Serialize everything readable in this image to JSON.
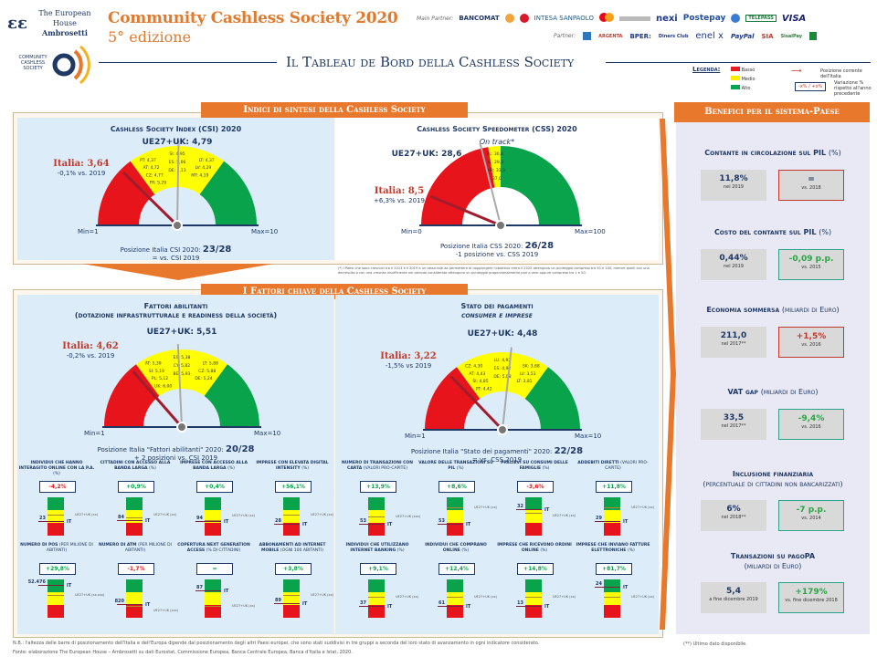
{
  "header": {
    "org_logo_line1": "The European House",
    "org_logo_line2": "Ambrosetti",
    "title": "Community Cashless Society 2020",
    "edition": "5° edizione",
    "ccs_logo_text": "COMMUNITY CASHLESS SOCIETY",
    "main_partner_label": "Main Partner:",
    "main_partners": [
      "BANCOMAT",
      "INTESA SANPAOLO",
      "nexi",
      "Postepay",
      "TELEPASS",
      "VISA"
    ],
    "partner_label": "Partner:",
    "partners": [
      "ARGENTA",
      "BPER:",
      "Diners Club",
      "enel x",
      "PayPal",
      "SIA",
      "SisalPay"
    ],
    "tableau_title": "Il Tableau de Bord della Cashless Society"
  },
  "legend": {
    "title": "Legenda:",
    "levels": [
      {
        "label": "Basso",
        "color": "#e31e24"
      },
      {
        "label": "Medio",
        "color": "#ffed00"
      },
      {
        "label": "Alto",
        "color": "#00a651"
      }
    ],
    "arrow_label": "Posizione corrente dell'Italia",
    "change_sample": "-x% / +x%",
    "change_label": "Variazione % rispetto all'anno precedente"
  },
  "colors": {
    "red": "#e8141b",
    "yellow": "#ffff00",
    "green": "#08a34a",
    "orange": "#e8782c",
    "navy": "#1f3864",
    "italy": "#c0392b"
  },
  "sections": {
    "indici": "Indici di sintesi della Cashless Society",
    "fattori": "I Fattori chiave della Cashless Society",
    "benefici": "Benefici per il sistema-Paese"
  },
  "gauges": [
    {
      "title": "Cashless Society Index (CSI) 2020",
      "eu_label": "UE27+UK: 4,79",
      "eu_value": 4.79,
      "italy_label": "Italia: 3,64",
      "italy_value": 3.64,
      "italy_change": "-0,1% vs. 2019",
      "min": 1,
      "max": 10,
      "min_label": "Min=1",
      "max_label": "Max=10",
      "red_until": 4.2,
      "yellow_until": 5.35,
      "position_text": "Posizione Italia CSI 2020: ",
      "position_rank": "23/28",
      "position_change": "= vs. CSI 2019",
      "country_labels": [
        "PT: 4,37",
        "SI: 4,95",
        "LT: 4,37",
        "AT: 4,72",
        "ES: 5,06",
        "LV: 4,29",
        "CZ: 4,77",
        "DE: 5,13",
        "MT: 4,19",
        "FR: 5,29"
      ]
    },
    {
      "title": "Cashless Society Speedometer (CSS) 2020",
      "subtitle": "On track*",
      "eu_label": "UE27+UK: 28,6",
      "eu_value": 28.6,
      "italy_label": "Italia: 8,5",
      "italy_value": 8.5,
      "italy_change": "+6,3% vs. 2019",
      "min": 0,
      "max": 100,
      "min_label": "Min=0",
      "max_label": "Max=100",
      "red_until": 30.5,
      "yellow_until": 37.5,
      "position_text": "Posizione Italia CSS 2020: ",
      "position_rank": "26/28",
      "position_change": "-1 posizione vs. CSS 2019",
      "country_labels": [
        "PL: 30,8",
        "IE: 29,3",
        "HR: 33,3",
        "37,0"
      ]
    },
    {
      "title": "Fattori abilitanti",
      "title2": "(dotazione infrastrutturale e readiness della società)",
      "eu_label": "UE27+UK: 5,51",
      "eu_value": 5.51,
      "italy_label": "Italia: 4,62",
      "italy_value": 4.62,
      "italy_change": "-0,2% vs. 2019",
      "min": 1,
      "max": 10,
      "min_label": "Min=1",
      "max_label": "Max=10",
      "red_until": 5.0,
      "yellow_until": 6.1,
      "position_text": "Posizione Italia \"Fattori abilitanti\" 2020: ",
      "position_rank": "20/28",
      "position_change": "+ 2 posizioni vs. CSI 2019",
      "country_labels": [
        "AT: 5,39",
        "ES: 5,38",
        "LT: 5,88",
        "SI: 5,19",
        "CY: 5,82",
        "CZ: 5,88",
        "PL: 5,12",
        "BE: 5,93",
        "DE: 5,24",
        "UK: 6,00"
      ]
    },
    {
      "title": "Stato dei pagamenti",
      "title2": "consumer e imprese",
      "eu_label": "UE27+UK: 4,48",
      "eu_value": 4.48,
      "italy_label": "Italia: 3,22",
      "italy_value": 3.22,
      "italy_change": "-1,5% vs 2019",
      "min": 1,
      "max": 10,
      "min_label": "Min=1",
      "max_label": "Max=10",
      "red_until": 3.6,
      "yellow_until": 5.1,
      "position_text": "Posizione Italia \"Stato dei pagamenti\" 2020: ",
      "position_rank": "22/28",
      "position_change": "= vs. CSS 2019",
      "country_labels": [
        "CZ: 4,30",
        "LU: 4,92",
        "SK: 3,68",
        "AT: 4,43",
        "ES: 4,92",
        "LV: 3,53",
        "SI: 4,85",
        "DE: 5,08",
        "LT: 3,81",
        "PT: 4,42"
      ]
    }
  ],
  "css_footnote": "(*) I Paesi che sono cresciuti tra il 2013 e il 2019 a un tasso tale da permettere di raggiungere l'obiettivo entro il 2025 ottengono un punteggio compreso tra 50 e 100, mentre quelli con una decrescita o con una crescita insufficiente nel periodo considerato ottengono un punteggio proporzionalmente pari a zero oppure compreso tra 1 e 50.",
  "indicators_left": [
    {
      "title": "Individui che hanno interagito online con la P.A.",
      "unit": "(%)",
      "delta": "-4,2%",
      "positive": false,
      "it_value": "23",
      "it_level": 0.38,
      "eu_level": 0.55,
      "eu_label": "UE27+UK (xx)"
    },
    {
      "title": "Cittadini con accesso alla banda larga",
      "unit": "(%)",
      "delta": "+0,9%",
      "positive": true,
      "it_value": "84",
      "it_level": 0.4,
      "eu_level": 0.47,
      "eu_label": "UE27+UK (xx)"
    },
    {
      "title": "Imprese con accesso alla banda larga",
      "unit": "(%)",
      "delta": "+0,4%",
      "positive": true,
      "it_value": "94",
      "it_level": 0.38,
      "eu_level": 0.4,
      "eu_label": "UE27+UK (xx)"
    },
    {
      "title": "Imprese con elevata digital intensity",
      "unit": "(%)",
      "delta": "+56,1%",
      "positive": true,
      "it_value": "28",
      "it_level": 0.3,
      "eu_level": 0.55,
      "eu_label": "UE27+UK (xx)"
    },
    {
      "title": "Numero di POS",
      "unit": "(per milione di abitanti)",
      "delta": "+29,8%",
      "positive": true,
      "it_value": "52.476",
      "it_level": 0.85,
      "eu_level": 0.6,
      "eu_label": "UE27+UK (xx.xxx)"
    },
    {
      "title": "Numero di ATM",
      "unit": "(per milione di abitanti)",
      "delta": "-1,7%",
      "positive": false,
      "it_value": "820",
      "it_level": 0.36,
      "eu_level": 0.3,
      "eu_label": "UE27+UK (xxx)"
    },
    {
      "title": "Copertura Next Generation Access",
      "unit": "(% di cittadini)",
      "delta": "=",
      "positive": true,
      "it_value": "87",
      "it_level": 0.72,
      "eu_level": 0.3,
      "eu_label": "UE27+UK (xx)"
    },
    {
      "title": "Abbonamenti ad Internet mobile",
      "unit": "(ogni 100 abitanti)",
      "delta": "+3,8%",
      "positive": true,
      "it_value": "89",
      "it_level": 0.38,
      "eu_level": 0.6,
      "eu_label": "UE27+UK (xx)"
    }
  ],
  "indicators_right": [
    {
      "title": "Numero di transazioni con carta",
      "unit": "(valori pro-capite)",
      "delta": "+13,9%",
      "positive": true,
      "it_value": "53",
      "it_level": 0.3,
      "eu_level": 0.5,
      "eu_label": "UE27+UK (xxx)"
    },
    {
      "title": "Valore delle transazioni su PIL",
      "unit": "(%)",
      "delta": "+8,6%",
      "positive": true,
      "it_value": "53",
      "it_level": 0.3,
      "eu_level": 0.75,
      "eu_label": "UE27+UK (xx)"
    },
    {
      "title": "Prelievi su consumi delle famiglie",
      "unit": "(%)",
      "delta": "-3,6%",
      "positive": false,
      "it_value": "32",
      "it_level": 0.7,
      "eu_level": 0.6,
      "eu_label": "UE27+UK (xx)"
    },
    {
      "title": "Addebiti diretti",
      "unit": "(valori pro-capite)",
      "delta": "+11,8%",
      "positive": true,
      "it_value": "29",
      "it_level": 0.38,
      "eu_level": 0.75,
      "eu_label": "UE27+UK (xx)"
    },
    {
      "title": "Individui che utilizzano internet banking",
      "unit": "(%)",
      "delta": "+9,1%",
      "positive": true,
      "it_value": "37",
      "it_level": 0.3,
      "eu_level": 0.55,
      "eu_label": "UE27+UK (xx)"
    },
    {
      "title": "Individui che comprano online",
      "unit": "(%)",
      "delta": "+12,4%",
      "positive": true,
      "it_value": "61",
      "it_level": 0.3,
      "eu_level": 0.55,
      "eu_label": "UE27+UK (xx)"
    },
    {
      "title": "Imprese che ricevono ordini online",
      "unit": "(%)",
      "delta": "+14,8%",
      "positive": true,
      "it_value": "13",
      "it_level": 0.3,
      "eu_level": 0.55,
      "eu_label": "UE27+UK (xx)"
    },
    {
      "title": "Imprese che inviano fatture elettroniche",
      "unit": "(%)",
      "delta": "+81,7%",
      "positive": true,
      "it_value": "24",
      "it_level": 0.8,
      "eu_level": 0.55,
      "eu_label": "UE27+UK (xx)"
    }
  ],
  "benefits": [
    {
      "title": "Contante in circolazione sul PIL",
      "title_note": "(%)",
      "value": "11,8%",
      "value_note": "nel 2019",
      "change": "=",
      "change_note": "vs. 2018",
      "positive": false
    },
    {
      "title": "Costo del contante sul PIL",
      "title_note": "(%)",
      "value": "0,44%",
      "value_note": "nel 2019",
      "change": "-0,09 p.p.",
      "change_note": "vs. 2015",
      "positive": true
    },
    {
      "title": "Economia sommersa",
      "title_note": "(miliardi di Euro)",
      "value": "211,0",
      "value_note": "nel 2017**",
      "change": "+1,5%",
      "change_note": "vs. 2016",
      "positive": false
    },
    {
      "title": "VAT gap",
      "title_note": "(miliardi di Euro)",
      "value": "33,5",
      "value_note": "nel 2017**",
      "change": "-9,4%",
      "change_note": "vs. 2016",
      "positive": true
    },
    {
      "title": "Inclusione finanziaria",
      "title_note": "(percentuale di cittadini non bancarizzati)",
      "value": "6%",
      "value_note": "nel 2018**",
      "change": "-7 p.p.",
      "change_note": "vs. 2014",
      "positive": true
    },
    {
      "title": "Transazioni su pagoPA",
      "title_note": "(miliardi di Euro)",
      "value": "5,4",
      "value_note": "a fine dicembre 2019",
      "change": "+179%",
      "change_note": "vs. fine dicembre 2018",
      "positive": true
    }
  ],
  "notes": {
    "nb": "N.B.: l'altezza delle barre di posizionamento dell'Italia e dell'Europa dipende dal posizionamento degli altri Paesi europei, che sono stati suddivisi in tre gruppi a seconda del loro stato di avanzamento in ogni indicatore considerato.",
    "source": "Fonte: elaborazione The European House – Ambrosetti su dati Eurostat, Commissione Europea, Banca Centrale Europea, Banca d'Italia e Istat, 2020.",
    "last_data": "(**) Ultimo dato disponibile."
  }
}
